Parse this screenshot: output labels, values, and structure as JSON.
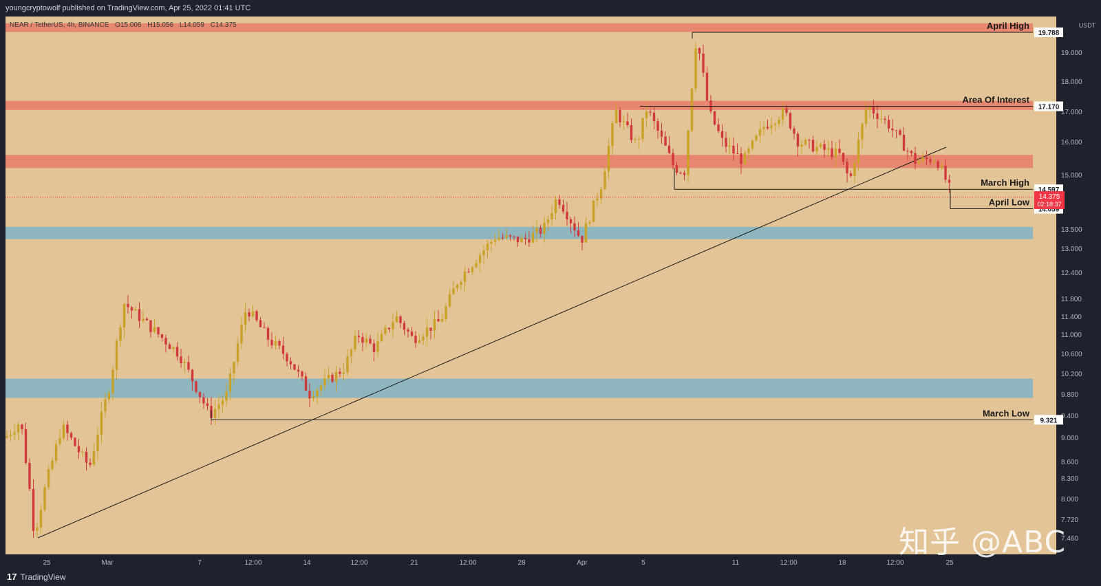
{
  "header": {
    "publish_line": "youngcryptowolf published on TradingView.com, Apr 25, 2022 01:41 UTC"
  },
  "chart_data": {
    "type": "candlestick",
    "symbol_line": "NEAR / TetherUS, 4h, BINANCE",
    "ohlc": {
      "open": "O15.006",
      "high": "H15.056",
      "low": "L14.059",
      "close": "C14.375"
    },
    "currency_label": "USDT",
    "y_axis_ticks": [
      "19.000",
      "18.000",
      "17.000",
      "16.000",
      "15.000",
      "13.500",
      "13.000",
      "12.400",
      "11.800",
      "11.400",
      "11.000",
      "10.600",
      "10.200",
      "9.800",
      "9.400",
      "9.000",
      "8.600",
      "8.300",
      "8.000",
      "7.720",
      "7.460"
    ],
    "x_axis_ticks": [
      "25",
      "Mar",
      "7",
      "12:00",
      "14",
      "12:00",
      "21",
      "12:00",
      "28",
      "Apr",
      "5",
      "11",
      "12:00",
      "18",
      "12:00",
      "25"
    ],
    "resistance_zones": [
      {
        "from": 19.8,
        "to": 20.15,
        "color": "#e8876f"
      },
      {
        "from": 17.05,
        "to": 17.35,
        "color": "#e8876f"
      },
      {
        "from": 15.2,
        "to": 15.6,
        "color": "#e8876f"
      }
    ],
    "support_zones": [
      {
        "from": 13.24,
        "to": 13.56,
        "color": "#8fb6bf"
      },
      {
        "from": 9.73,
        "to": 10.1,
        "color": "#8fb6bf"
      }
    ],
    "levels": [
      {
        "name": "April High",
        "value": "19.788"
      },
      {
        "name": "Area Of Interest",
        "value": "17.170"
      },
      {
        "name": "March High",
        "value": "14.597"
      },
      {
        "name": "April Low",
        "value": "14.059"
      },
      {
        "name": "March Low",
        "value": "9.321"
      }
    ],
    "last_price": {
      "value": "14.375",
      "countdown": "02:18:37",
      "color": "#f23645"
    },
    "up_color": "#c9a227",
    "down_color": "#d13a3a",
    "background_color": "#e2c497"
  },
  "footer": {
    "brand": "TradingView",
    "brand_mark": "17"
  },
  "watermark": "知乎 @ABC"
}
